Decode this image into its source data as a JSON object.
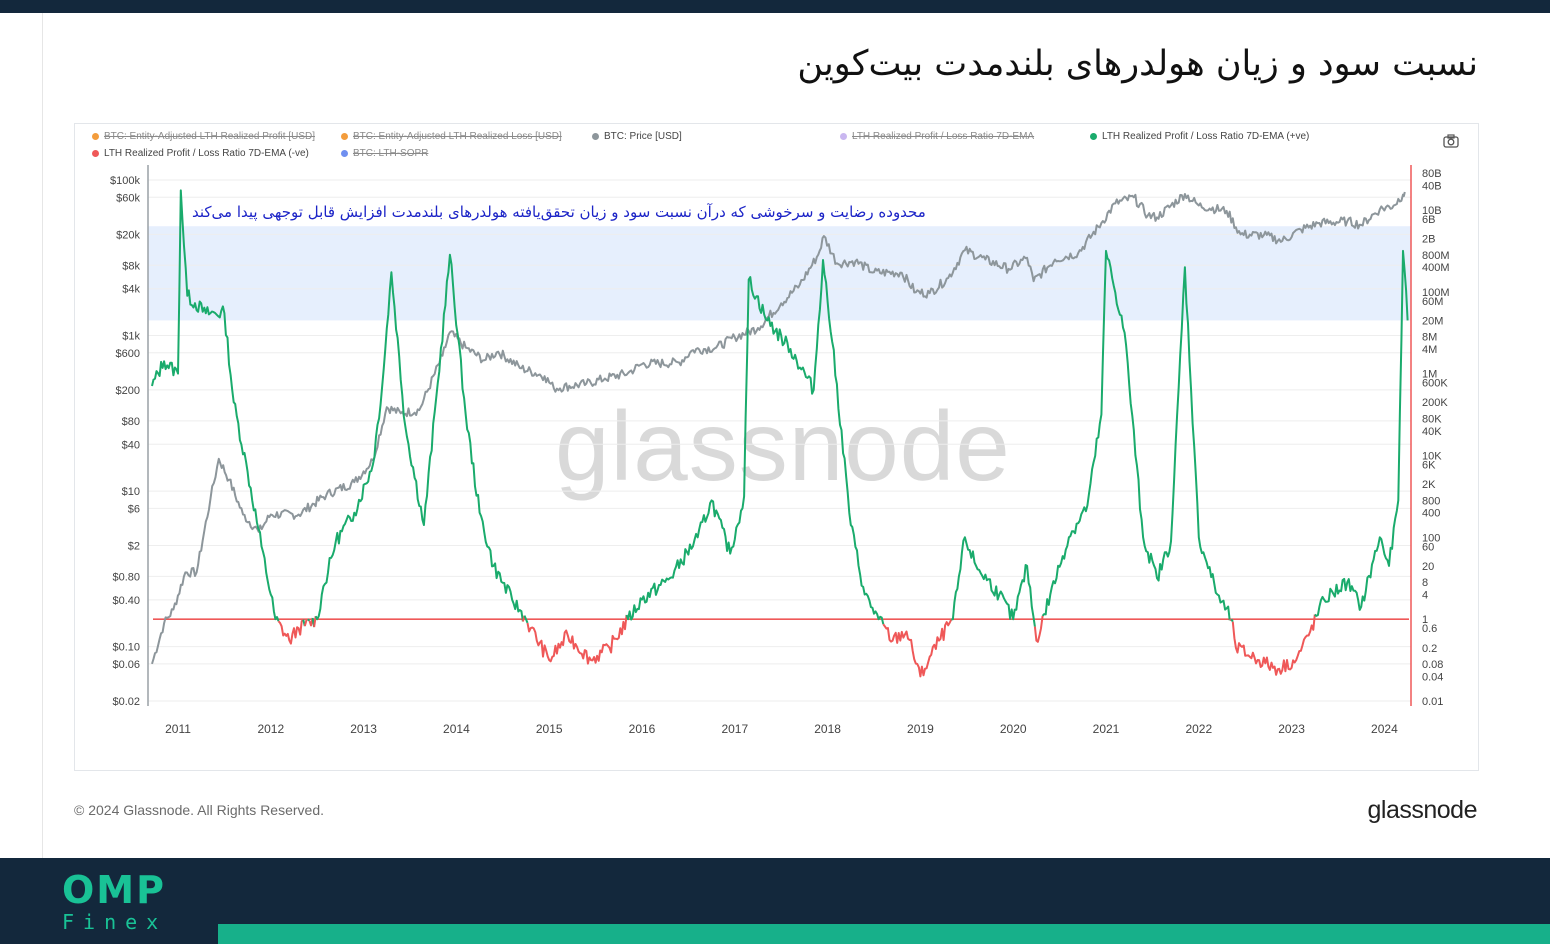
{
  "title": "نسبت سود و زیان هولدرهای بلندمدت بیت‌کوین",
  "annotation": "محدوده رضایت و سرخوشی که درآن نسبت سود و زیان تحقق‌یافته هولدرهای بلندمدت افزایش قابل توجهی پیدا می‌کند",
  "watermark": "glassnode",
  "copyright": "© 2024 Glassnode. All Rights Reserved.",
  "brand": "glassnode",
  "logo": {
    "top": "OMP",
    "bottom": "Finex"
  },
  "legend": [
    {
      "label": "BTC: Entity-Adjusted LTH Realized Profit [USD]",
      "color": "#f39c3c",
      "enabled": false
    },
    {
      "label": "BTC: Entity-Adjusted LTH Realized Loss [USD]",
      "color": "#f39c3c",
      "enabled": false
    },
    {
      "label": "BTC: Price [USD]",
      "color": "#8d969b",
      "enabled": true
    },
    {
      "label": "LTH Realized Profit / Loss Ratio 7D-EMA",
      "color": "#c9b7f0",
      "enabled": false
    },
    {
      "label": "LTH Realized Profit / Loss Ratio 7D-EMA (+ve)",
      "color": "#1aab6c",
      "enabled": true
    },
    {
      "label": "LTH Realized Profit / Loss Ratio 7D-EMA (-ve)",
      "color": "#ef5858",
      "enabled": true
    },
    {
      "label": "BTC: LTH-SOPR",
      "color": "#6f8ff0",
      "enabled": false
    }
  ],
  "colors": {
    "price": "#8d969b",
    "positive": "#1aab6c",
    "negative": "#ef5858",
    "band": "#e2ecfd",
    "annotation": "#1c24c7",
    "footer": "#13283c",
    "accent": "#17b08a"
  },
  "chart_data": {
    "type": "line",
    "x_axis": {
      "range": [
        "2010-09",
        "2024-04"
      ],
      "ticks": [
        "2011",
        "2012",
        "2013",
        "2014",
        "2015",
        "2016",
        "2017",
        "2018",
        "2019",
        "2020",
        "2021",
        "2022",
        "2023",
        "2024"
      ]
    },
    "left_axis": {
      "scale": "log",
      "unit": "USD",
      "ticks": [
        "$100k",
        "$60k",
        "$20k",
        "$8k",
        "$4k",
        "$1k",
        "$600",
        "$200",
        "$80",
        "$40",
        "$10",
        "$6",
        "$2",
        "$0.80",
        "$0.40",
        "$0.10",
        "$0.06",
        "$0.02"
      ]
    },
    "right_axis": {
      "scale": "log",
      "ticks": [
        "80B",
        "40B",
        "10B",
        "6B",
        "2B",
        "800M",
        "400M",
        "100M",
        "60M",
        "20M",
        "8M",
        "4M",
        "1M",
        "600K",
        "200K",
        "80K",
        "40K",
        "10K",
        "6K",
        "2K",
        "800",
        "400",
        "100",
        "60",
        "20",
        "8",
        "4",
        "1",
        "0.6",
        "0.2",
        "0.08",
        "0.04",
        "0.01"
      ]
    },
    "threshold_line": {
      "value": 1,
      "axis": "right"
    },
    "highlight_band": {
      "axis": "right",
      "from": 20000000,
      "to": 4000000000
    },
    "series": [
      {
        "name": "BTC: Price [USD]",
        "axis": "left",
        "points": [
          [
            2010.72,
            0.06
          ],
          [
            2010.85,
            0.2
          ],
          [
            2010.95,
            0.3
          ],
          [
            2011.08,
            0.9
          ],
          [
            2011.2,
            0.9
          ],
          [
            2011.35,
            8
          ],
          [
            2011.44,
            26
          ],
          [
            2011.55,
            14
          ],
          [
            2011.7,
            5
          ],
          [
            2011.87,
            3
          ],
          [
            2012.0,
            5
          ],
          [
            2012.3,
            5
          ],
          [
            2012.6,
            9
          ],
          [
            2012.9,
            13
          ],
          [
            2013.1,
            25
          ],
          [
            2013.25,
            120
          ],
          [
            2013.4,
            100
          ],
          [
            2013.6,
            110
          ],
          [
            2013.85,
            550
          ],
          [
            2013.93,
            1100
          ],
          [
            2014.1,
            700
          ],
          [
            2014.3,
            480
          ],
          [
            2014.45,
            620
          ],
          [
            2014.7,
            380
          ],
          [
            2014.95,
            300
          ],
          [
            2015.05,
            210
          ],
          [
            2015.4,
            240
          ],
          [
            2015.6,
            280
          ],
          [
            2015.85,
            330
          ],
          [
            2016.0,
            430
          ],
          [
            2016.4,
            450
          ],
          [
            2016.55,
            650
          ],
          [
            2016.8,
            700
          ],
          [
            2017.0,
            950
          ],
          [
            2017.25,
            1250
          ],
          [
            2017.5,
            2600
          ],
          [
            2017.7,
            4500
          ],
          [
            2017.9,
            11000
          ],
          [
            2017.96,
            19000
          ],
          [
            2018.1,
            8500
          ],
          [
            2018.3,
            9000
          ],
          [
            2018.5,
            6500
          ],
          [
            2018.8,
            6400
          ],
          [
            2018.95,
            3600
          ],
          [
            2019.1,
            3500
          ],
          [
            2019.3,
            5500
          ],
          [
            2019.48,
            12500
          ],
          [
            2019.7,
            9500
          ],
          [
            2019.95,
            7200
          ],
          [
            2020.15,
            10000
          ],
          [
            2020.22,
            5000
          ],
          [
            2020.45,
            9500
          ],
          [
            2020.7,
            11500
          ],
          [
            2020.95,
            28000
          ],
          [
            2021.1,
            50000
          ],
          [
            2021.3,
            60000
          ],
          [
            2021.45,
            35000
          ],
          [
            2021.55,
            33000
          ],
          [
            2021.85,
            66000
          ],
          [
            2022.0,
            47000
          ],
          [
            2022.3,
            40000
          ],
          [
            2022.45,
            20000
          ],
          [
            2022.7,
            19500
          ],
          [
            2022.9,
            16500
          ],
          [
            2023.1,
            23000
          ],
          [
            2023.3,
            28000
          ],
          [
            2023.6,
            29500
          ],
          [
            2023.75,
            26500
          ],
          [
            2023.95,
            42000
          ],
          [
            2024.1,
            47000
          ],
          [
            2024.2,
            65000
          ],
          [
            2024.22,
            70000
          ]
        ]
      },
      {
        "name": "LTH Realized Profit / Loss Ratio 7D-EMA",
        "axis": "right",
        "points": [
          [
            2010.72,
            500000
          ],
          [
            2010.85,
            2000000
          ],
          [
            2011.0,
            1000000
          ],
          [
            2011.03,
            30000000000
          ],
          [
            2011.1,
            80000000
          ],
          [
            2011.3,
            30000000
          ],
          [
            2011.5,
            30000000
          ],
          [
            2011.6,
            200000
          ],
          [
            2011.75,
            4000
          ],
          [
            2011.9,
            60
          ],
          [
            2012.05,
            1
          ],
          [
            2012.2,
            0.3
          ],
          [
            2012.3,
            0.6
          ],
          [
            2012.5,
            1
          ],
          [
            2012.55,
            4
          ],
          [
            2012.7,
            80
          ],
          [
            2012.9,
            400
          ],
          [
            2013.1,
            6000
          ],
          [
            2013.2,
            500000
          ],
          [
            2013.3,
            300000000
          ],
          [
            2013.45,
            50000
          ],
          [
            2013.65,
            200
          ],
          [
            2013.8,
            600000
          ],
          [
            2013.93,
            800000000
          ],
          [
            2014.1,
            100000
          ],
          [
            2014.25,
            400
          ],
          [
            2014.4,
            20
          ],
          [
            2014.6,
            3
          ],
          [
            2014.75,
            1
          ],
          [
            2014.8,
            0.6
          ],
          [
            2015.0,
            0.1
          ],
          [
            2015.2,
            0.4
          ],
          [
            2015.45,
            0.1
          ],
          [
            2015.65,
            0.2
          ],
          [
            2015.85,
            1
          ],
          [
            2016.0,
            3
          ],
          [
            2016.3,
            10
          ],
          [
            2016.6,
            100
          ],
          [
            2016.75,
            800
          ],
          [
            2016.95,
            40
          ],
          [
            2017.1,
            1000
          ],
          [
            2017.15,
            200000000
          ],
          [
            2017.35,
            20000000
          ],
          [
            2017.6,
            4000000
          ],
          [
            2017.85,
            400000
          ],
          [
            2017.95,
            600000000
          ],
          [
            2018.05,
            6000000
          ],
          [
            2018.25,
            200
          ],
          [
            2018.4,
            4
          ],
          [
            2018.55,
            1
          ],
          [
            2018.7,
            0.3
          ],
          [
            2018.85,
            0.5
          ],
          [
            2019.0,
            0.04
          ],
          [
            2019.2,
            0.3
          ],
          [
            2019.35,
            1
          ],
          [
            2019.48,
            100
          ],
          [
            2019.6,
            20
          ],
          [
            2019.85,
            4
          ],
          [
            2020.0,
            1
          ],
          [
            2020.15,
            20
          ],
          [
            2020.25,
            0.3
          ],
          [
            2020.4,
            4
          ],
          [
            2020.6,
            100
          ],
          [
            2020.8,
            600
          ],
          [
            2020.95,
            100000
          ],
          [
            2021.0,
            1000000000
          ],
          [
            2021.2,
            10000000
          ],
          [
            2021.4,
            100
          ],
          [
            2021.55,
            10
          ],
          [
            2021.7,
            80
          ],
          [
            2021.85,
            400000000
          ],
          [
            2022.0,
            100
          ],
          [
            2022.2,
            4
          ],
          [
            2022.35,
            1
          ],
          [
            2022.4,
            0.2
          ],
          [
            2022.65,
            0.1
          ],
          [
            2022.85,
            0.06
          ],
          [
            2023.05,
            0.1
          ],
          [
            2023.2,
            0.5
          ],
          [
            2023.35,
            3
          ],
          [
            2023.6,
            8
          ],
          [
            2023.75,
            2
          ],
          [
            2023.95,
            100
          ],
          [
            2024.05,
            20
          ],
          [
            2024.15,
            800
          ],
          [
            2024.2,
            1000000000
          ],
          [
            2024.25,
            20000000
          ]
        ]
      }
    ]
  }
}
